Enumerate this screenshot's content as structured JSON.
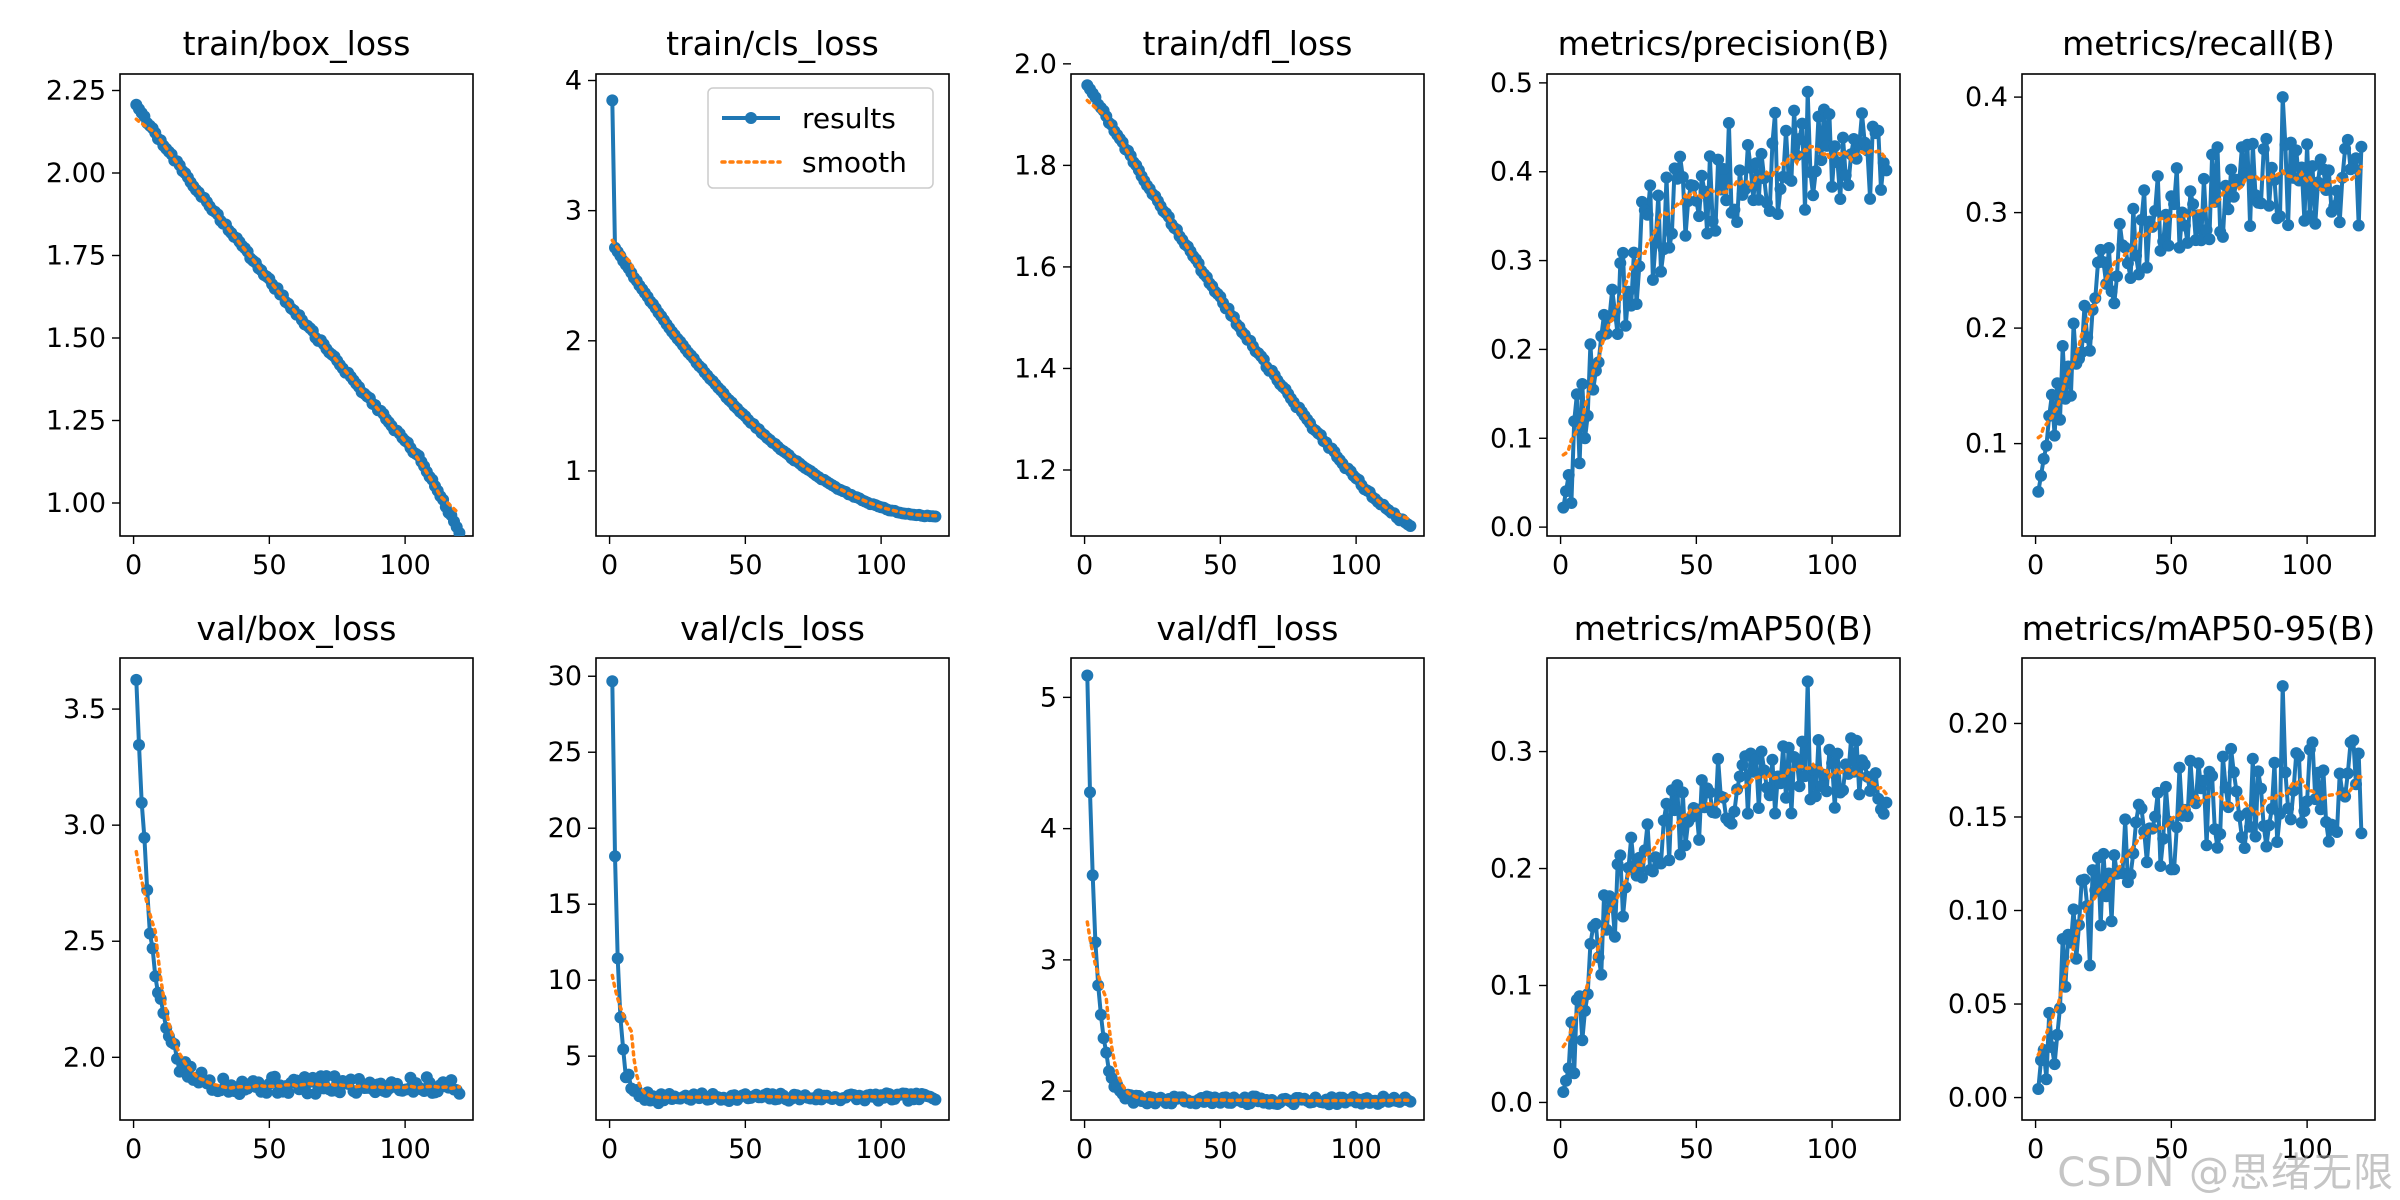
{
  "watermark": "CSDN @思绪无限",
  "colors": {
    "results": "#1f77b4",
    "smooth": "#ff7f0e",
    "axis": "#000000"
  },
  "legend": {
    "results_label": "results",
    "smooth_label": "smooth",
    "position": "upper-right",
    "panel": 1
  },
  "chart_data": [
    {
      "type": "line",
      "title": "train/box_loss",
      "xlim": [
        -5,
        125
      ],
      "ylim": [
        0.9,
        2.3
      ],
      "xticks": [
        0,
        50,
        100
      ],
      "yticks": [
        1.0,
        1.25,
        1.5,
        1.75,
        2.0,
        2.25
      ],
      "ytick_labels": [
        "1.00",
        "1.25",
        "1.50",
        "1.75",
        "2.00",
        "2.25"
      ],
      "kind": "decay",
      "points": {
        "start": 2.21,
        "end": 0.92,
        "x_end": 120,
        "shape": "linear_dip"
      }
    },
    {
      "type": "line",
      "title": "train/cls_loss",
      "xlim": [
        -5,
        125
      ],
      "ylim": [
        0.5,
        4.05
      ],
      "xticks": [
        0,
        50,
        100
      ],
      "yticks": [
        1,
        2,
        3,
        4
      ],
      "ytick_labels": [
        "1",
        "2",
        "3",
        "4"
      ],
      "kind": "decay",
      "points": {
        "start": 3.85,
        "second": 2.75,
        "end": 0.65,
        "x_end": 120,
        "shape": "log"
      }
    },
    {
      "type": "line",
      "title": "train/dfl_loss",
      "xlim": [
        -5,
        125
      ],
      "ylim": [
        1.07,
        1.98
      ],
      "xticks": [
        0,
        50,
        100
      ],
      "yticks": [
        1.2,
        1.4,
        1.6,
        1.8,
        2.0
      ],
      "ytick_labels": [
        "1.2",
        "1.4",
        "1.6",
        "1.8",
        "2.0"
      ],
      "kind": "decay",
      "points": {
        "start": 1.96,
        "end": 1.09,
        "x_end": 120,
        "shape": "sqrt"
      }
    },
    {
      "type": "line",
      "title": "metrics/precision(B)",
      "xlim": [
        -5,
        125
      ],
      "ylim": [
        -0.01,
        0.51
      ],
      "xticks": [
        0,
        50,
        100
      ],
      "yticks": [
        0.0,
        0.1,
        0.2,
        0.3,
        0.4,
        0.5
      ],
      "ytick_labels": [
        "0.0",
        "0.1",
        "0.2",
        "0.3",
        "0.4",
        "0.5"
      ],
      "kind": "noisy",
      "points": {
        "start": 0.01,
        "plateau": 0.42,
        "noise": 0.06,
        "x_end": 120,
        "seed": 11,
        "peak": 0.49
      }
    },
    {
      "type": "line",
      "title": "metrics/recall(B)",
      "xlim": [
        -5,
        125
      ],
      "ylim": [
        0.02,
        0.42
      ],
      "xticks": [
        0,
        50,
        100
      ],
      "yticks": [
        0.1,
        0.2,
        0.3,
        0.4
      ],
      "ytick_labels": [
        "0.1",
        "0.2",
        "0.3",
        "0.4"
      ],
      "kind": "noisy",
      "points": {
        "start": 0.05,
        "plateau": 0.33,
        "noise": 0.04,
        "x_end": 120,
        "seed": 23,
        "peak": 0.4
      }
    },
    {
      "type": "line",
      "title": "val/box_loss",
      "xlim": [
        -5,
        125
      ],
      "ylim": [
        1.73,
        3.72
      ],
      "xticks": [
        0,
        50,
        100
      ],
      "yticks": [
        2.0,
        2.5,
        3.0,
        3.5
      ],
      "ytick_labels": [
        "2.0",
        "2.5",
        "3.0",
        "3.5"
      ],
      "kind": "spike_decay",
      "points": {
        "start": 3.63,
        "floor": 1.88,
        "noise": 0.04,
        "x_end": 120,
        "seed": 5,
        "rate": 0.18
      }
    },
    {
      "type": "line",
      "title": "val/cls_loss",
      "xlim": [
        -5,
        125
      ],
      "ylim": [
        0.8,
        31.2
      ],
      "xticks": [
        0,
        50,
        100
      ],
      "yticks": [
        5,
        10,
        15,
        20,
        25,
        30
      ],
      "ytick_labels": [
        "5",
        "10",
        "15",
        "20",
        "25",
        "30"
      ],
      "kind": "spike_decay",
      "points": {
        "start": 29.7,
        "floor": 2.3,
        "noise": 0.25,
        "x_end": 120,
        "seed": 7,
        "rate": 0.55
      }
    },
    {
      "type": "line",
      "title": "val/dfl_loss",
      "xlim": [
        -5,
        125
      ],
      "ylim": [
        1.78,
        5.3
      ],
      "xticks": [
        0,
        50,
        100
      ],
      "yticks": [
        2,
        3,
        4,
        5
      ],
      "ytick_labels": [
        "2",
        "3",
        "4",
        "5"
      ],
      "kind": "spike_decay",
      "points": {
        "start": 5.17,
        "floor": 1.93,
        "noise": 0.03,
        "x_end": 120,
        "seed": 9,
        "rate": 0.32
      }
    },
    {
      "type": "line",
      "title": "metrics/mAP50(B)",
      "xlim": [
        -5,
        125
      ],
      "ylim": [
        -0.015,
        0.38
      ],
      "xticks": [
        0,
        50,
        100
      ],
      "yticks": [
        0.0,
        0.1,
        0.2,
        0.3
      ],
      "ytick_labels": [
        "0.0",
        "0.1",
        "0.2",
        "0.3"
      ],
      "kind": "noisy",
      "points": {
        "start": 0.0,
        "plateau": 0.28,
        "noise": 0.035,
        "x_end": 120,
        "seed": 31,
        "peak": 0.36
      }
    },
    {
      "type": "line",
      "title": "metrics/mAP50-95(B)",
      "xlim": [
        -5,
        125
      ],
      "ylim": [
        -0.012,
        0.235
      ],
      "xticks": [
        0,
        50,
        100
      ],
      "yticks": [
        0.0,
        0.05,
        0.1,
        0.15,
        0.2
      ],
      "ytick_labels": [
        "0.00",
        "0.05",
        "0.10",
        "0.15",
        "0.20"
      ],
      "kind": "noisy",
      "points": {
        "start": 0.0,
        "plateau": 0.165,
        "noise": 0.028,
        "x_end": 120,
        "seed": 41,
        "peak": 0.22
      }
    }
  ]
}
